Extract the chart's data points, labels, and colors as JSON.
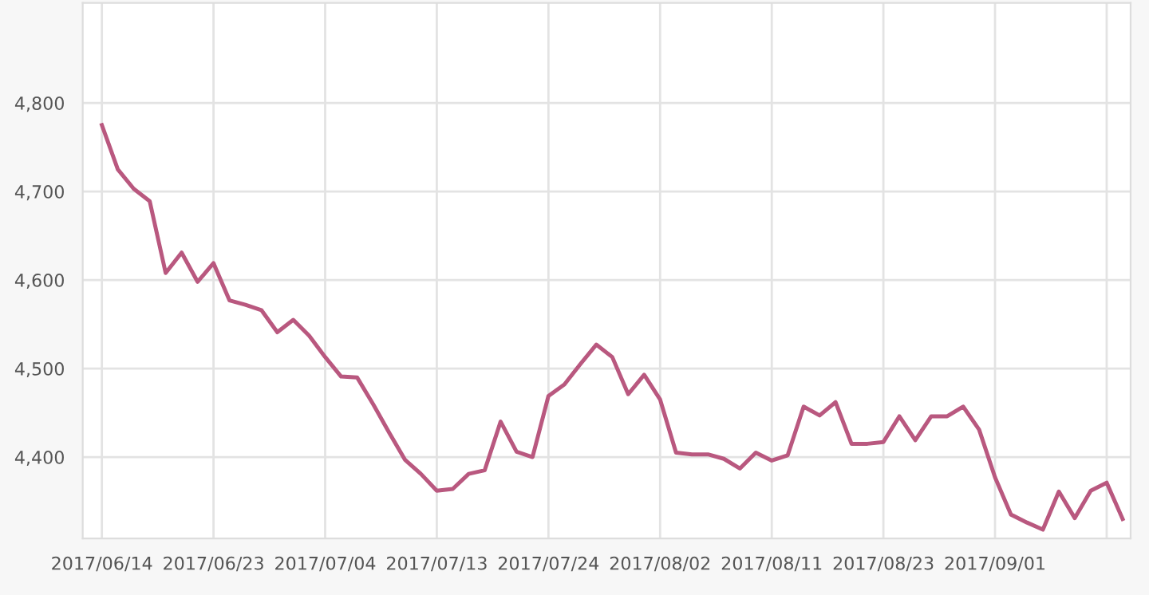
{
  "chart_data": {
    "type": "line",
    "categories": [
      "2017/06/14",
      null,
      null,
      null,
      null,
      null,
      null,
      "2017/06/23",
      null,
      null,
      null,
      null,
      null,
      null,
      "2017/07/04",
      null,
      null,
      null,
      null,
      null,
      null,
      "2017/07/13",
      null,
      null,
      null,
      null,
      null,
      null,
      "2017/07/24",
      null,
      null,
      null,
      null,
      null,
      null,
      "2017/08/02",
      null,
      null,
      null,
      null,
      null,
      null,
      "2017/08/11",
      null,
      null,
      null,
      null,
      null,
      null,
      "2017/08/23",
      null,
      null,
      null,
      null,
      null,
      null,
      "2017/09/01",
      null,
      null,
      null,
      null,
      null,
      null,
      null,
      null
    ],
    "series": [
      {
        "color": "#b9587f",
        "values": [
          4775,
          4725,
          4703,
          4689,
          4608,
          4631,
          4598,
          4619,
          4577,
          4572,
          4566,
          4541,
          4555,
          4537,
          4513,
          4491,
          4490,
          4460,
          4428,
          4397,
          4381,
          4362,
          4364,
          4381,
          4385,
          4440,
          4406,
          4400,
          4469,
          4482,
          4505,
          4527,
          4513,
          4471,
          4493,
          4465,
          4405,
          4403,
          4403,
          4398,
          4387,
          4405,
          4396,
          4402,
          4457,
          4447,
          4462,
          4415,
          4415,
          4417,
          4446,
          4419,
          4446,
          4446,
          4457,
          4431,
          4377,
          4335,
          4326,
          4318,
          4361,
          4331,
          4362,
          4371,
          4330
        ]
      }
    ],
    "ylim": [
      4308,
      4913
    ],
    "yticks": [
      {
        "value": 4400,
        "label": "4,400"
      },
      {
        "value": 4500,
        "label": "4,500"
      },
      {
        "value": 4600,
        "label": "4,600"
      },
      {
        "value": 4700,
        "label": "4,700"
      },
      {
        "value": 4800,
        "label": "4,800"
      }
    ],
    "grid": true,
    "legend": false,
    "marker": "none",
    "line_style": "solid"
  }
}
